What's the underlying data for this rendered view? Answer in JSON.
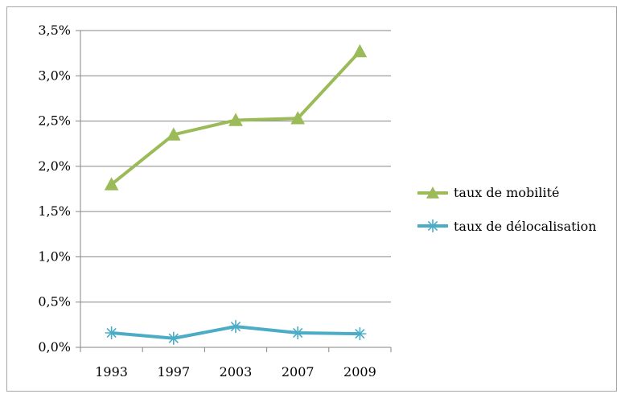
{
  "chart_data": {
    "type": "line",
    "title": "",
    "xlabel": "",
    "ylabel": "",
    "categories": [
      "1993",
      "1997",
      "2003",
      "2007",
      "2009"
    ],
    "ylim": [
      0,
      0.035
    ],
    "y_ticks": [
      0,
      0.005,
      0.01,
      0.015,
      0.02,
      0.025,
      0.03,
      0.035
    ],
    "y_tick_labels": [
      "0,0%",
      "0,5%",
      "1,0%",
      "1,5%",
      "2,0%",
      "2,5%",
      "3,0%",
      "3,5%"
    ],
    "grid": true,
    "legend_position": "right",
    "series": [
      {
        "name": "taux de mobilité",
        "values": [
          0.018,
          0.0235,
          0.0251,
          0.0253,
          0.0327
        ],
        "color": "#9bbb59",
        "marker": "triangle"
      },
      {
        "name": "taux de délocalisation",
        "values": [
          0.0016,
          0.001,
          0.0023,
          0.0016,
          0.0015
        ],
        "color": "#4bacc6",
        "marker": "asterisk"
      }
    ]
  }
}
